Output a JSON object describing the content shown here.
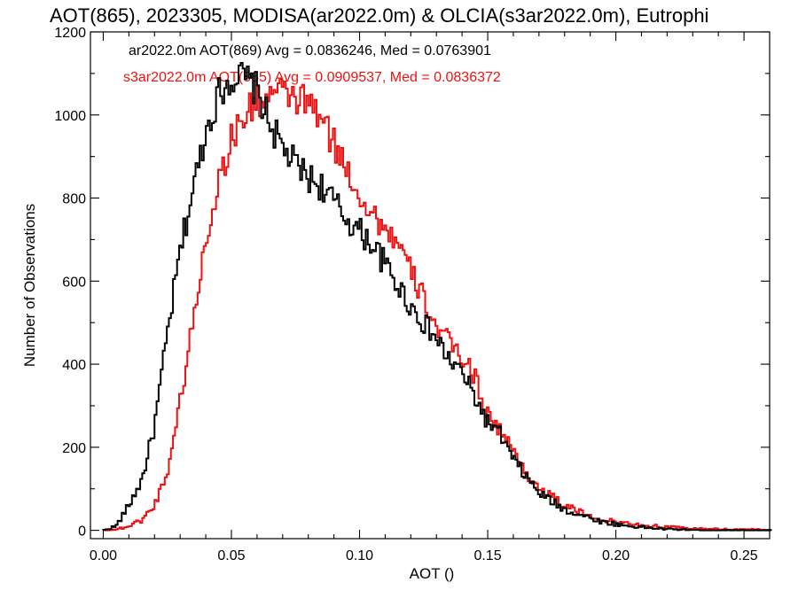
{
  "chart_data": {
    "type": "line",
    "title": "AOT(865), 2023305, MODISA(ar2022.0m) & OLCIA(s3ar2022.0m), Eutrophi",
    "xlabel": "AOT ()",
    "ylabel": "Number of Observations",
    "xlim": [
      -0.005,
      0.26
    ],
    "ylim": [
      -20,
      1200
    ],
    "xticks": [
      0.0,
      0.05,
      0.1,
      0.15,
      0.2,
      0.25
    ],
    "xtick_labels": [
      "0.00",
      "0.05",
      "0.10",
      "0.15",
      "0.20",
      "0.25"
    ],
    "yticks": [
      0,
      200,
      400,
      600,
      800,
      1000,
      1200
    ],
    "ytick_labels": [
      "0",
      "200",
      "400",
      "600",
      "800",
      "1000",
      "1200"
    ],
    "grid": false,
    "step": true,
    "annotations": [
      {
        "text": "ar2022.0m AOT(869) Avg = 0.0836246, Med = 0.0763901",
        "color": "#000000"
      },
      {
        "text": "s3ar2022.0m AOT(865) Avg = 0.0909537, Med = 0.0836372",
        "color": "#ee1111"
      }
    ],
    "series": [
      {
        "name": "ar2022.0m AOT(869)",
        "color": "#000000",
        "x": [
          0.0,
          0.005,
          0.01,
          0.015,
          0.02,
          0.025,
          0.03,
          0.035,
          0.04,
          0.045,
          0.05,
          0.055,
          0.06,
          0.065,
          0.07,
          0.075,
          0.08,
          0.085,
          0.09,
          0.095,
          0.1,
          0.105,
          0.11,
          0.115,
          0.12,
          0.125,
          0.13,
          0.135,
          0.14,
          0.145,
          0.15,
          0.155,
          0.16,
          0.165,
          0.17,
          0.175,
          0.18,
          0.185,
          0.19,
          0.195,
          0.2,
          0.205,
          0.21,
          0.215,
          0.22,
          0.225,
          0.23,
          0.235,
          0.24,
          0.245,
          0.25,
          0.255,
          0.26
        ],
        "y": [
          0,
          10,
          60,
          120,
          250,
          470,
          670,
          820,
          960,
          1050,
          1090,
          1090,
          1060,
          980,
          920,
          880,
          850,
          830,
          790,
          750,
          720,
          690,
          640,
          590,
          540,
          500,
          460,
          410,
          380,
          320,
          260,
          230,
          170,
          130,
          90,
          70,
          50,
          40,
          30,
          20,
          15,
          10,
          8,
          5,
          3,
          2,
          1,
          0,
          0,
          0,
          0,
          0,
          0
        ]
      },
      {
        "name": "s3ar2022.0m AOT(865)",
        "color": "#ee1111",
        "x": [
          0.0,
          0.005,
          0.01,
          0.015,
          0.02,
          0.025,
          0.03,
          0.035,
          0.04,
          0.045,
          0.05,
          0.055,
          0.06,
          0.065,
          0.07,
          0.075,
          0.08,
          0.085,
          0.09,
          0.095,
          0.1,
          0.105,
          0.11,
          0.115,
          0.12,
          0.125,
          0.13,
          0.135,
          0.14,
          0.145,
          0.15,
          0.155,
          0.16,
          0.165,
          0.17,
          0.175,
          0.18,
          0.185,
          0.19,
          0.195,
          0.2,
          0.205,
          0.21,
          0.215,
          0.22,
          0.225,
          0.23,
          0.235,
          0.24,
          0.245,
          0.25,
          0.255,
          0.26
        ],
        "y": [
          0,
          2,
          10,
          25,
          60,
          140,
          310,
          500,
          700,
          840,
          940,
          1000,
          1030,
          1050,
          1050,
          1040,
          1030,
          990,
          930,
          870,
          810,
          760,
          730,
          690,
          620,
          560,
          490,
          450,
          420,
          370,
          280,
          240,
          190,
          140,
          100,
          80,
          60,
          45,
          35,
          25,
          20,
          15,
          12,
          10,
          8,
          6,
          4,
          3,
          3,
          2,
          2,
          2,
          1
        ]
      }
    ]
  }
}
